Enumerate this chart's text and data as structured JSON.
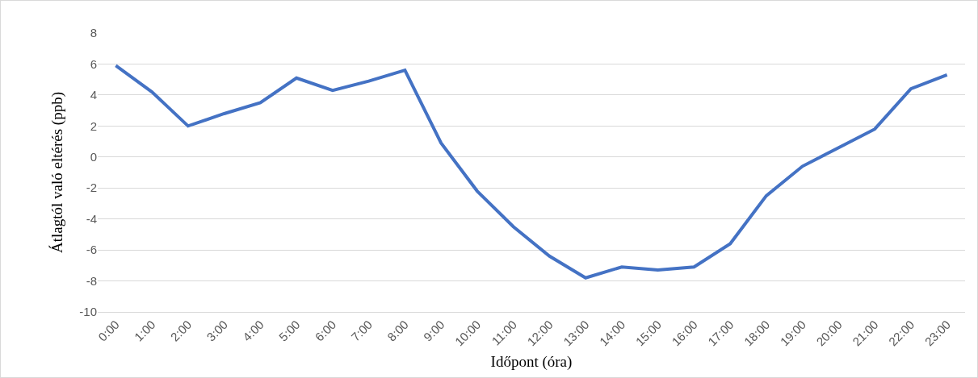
{
  "chart_data": {
    "type": "line",
    "xlabel": "Időpont (óra)",
    "ylabel": "Átlagtól való eltérés (ppb)",
    "categories": [
      "0:00",
      "1:00",
      "2:00",
      "3:00",
      "4:00",
      "5:00",
      "6:00",
      "7:00",
      "8:00",
      "9:00",
      "10:00",
      "11:00",
      "12:00",
      "13:00",
      "14:00",
      "15:00",
      "16:00",
      "17:00",
      "18:00",
      "19:00",
      "20:00",
      "21:00",
      "22:00",
      "23:00"
    ],
    "series": [
      {
        "color": "#4472c4",
        "values": [
          5.9,
          4.2,
          2.0,
          2.8,
          3.5,
          5.1,
          4.3,
          4.9,
          5.6,
          0.9,
          -2.2,
          -4.5,
          -6.4,
          -7.8,
          -7.1,
          -7.3,
          -7.1,
          -5.6,
          -2.5,
          -0.6,
          0.6,
          1.8,
          4.4,
          5.3
        ]
      }
    ],
    "ylim": [
      -10,
      8
    ],
    "yticks": [
      -10,
      -8,
      -6,
      -4,
      -2,
      0,
      2,
      4,
      6,
      8
    ],
    "grid": "y",
    "marker": "none",
    "line_style": "solid"
  }
}
